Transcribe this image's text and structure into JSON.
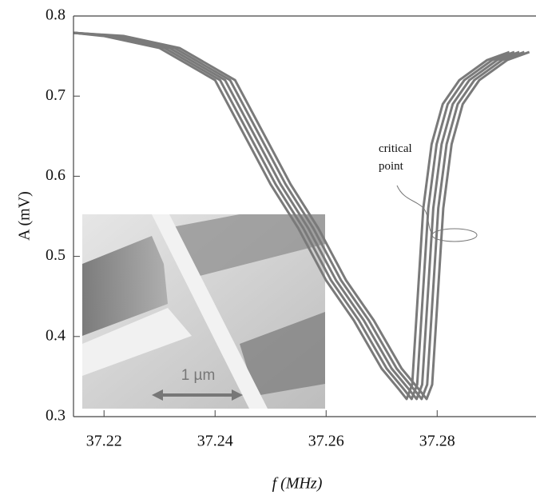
{
  "chart_data": {
    "type": "line",
    "x_label": "f (MHz)",
    "y_label": "A (mV)",
    "annotation": [
      "critical",
      "point"
    ],
    "inset_label": "1 µm",
    "xlim": [
      37.2145,
      37.2978
    ],
    "ylim": [
      0.3,
      0.8
    ],
    "xticks": [
      37.22,
      37.24,
      37.26,
      37.28
    ],
    "yticks": [
      0.3,
      0.4,
      0.5,
      0.6,
      0.7,
      0.8
    ],
    "color": "#7a7a7a",
    "series": [
      {
        "x": [
          37.2145,
          37.22,
          37.23,
          37.24,
          37.25,
          37.255,
          37.26,
          37.265,
          37.27,
          37.273,
          37.2745,
          37.2755,
          37.2765,
          37.2775,
          37.279,
          37.281,
          37.284,
          37.289,
          37.293
        ],
        "values": [
          0.779,
          0.775,
          0.76,
          0.72,
          0.59,
          0.535,
          0.47,
          0.42,
          0.36,
          0.335,
          0.322,
          0.34,
          0.45,
          0.56,
          0.64,
          0.69,
          0.72,
          0.745,
          0.755
        ]
      },
      {
        "x": [
          37.2145,
          37.2209,
          37.2309,
          37.2409,
          37.2509,
          37.2559,
          37.2609,
          37.2659,
          37.2709,
          37.2739,
          37.2754,
          37.2764,
          37.2774,
          37.2784,
          37.2799,
          37.2819,
          37.2849,
          37.2899,
          37.2939
        ],
        "values": [
          0.779,
          0.775,
          0.76,
          0.72,
          0.59,
          0.535,
          0.47,
          0.42,
          0.36,
          0.335,
          0.322,
          0.34,
          0.45,
          0.56,
          0.64,
          0.69,
          0.72,
          0.745,
          0.755
        ]
      },
      {
        "x": [
          37.2145,
          37.2218,
          37.2318,
          37.2418,
          37.2518,
          37.2568,
          37.2618,
          37.2668,
          37.2718,
          37.2748,
          37.2763,
          37.2773,
          37.2783,
          37.2793,
          37.2808,
          37.2828,
          37.2858,
          37.2908,
          37.2948
        ],
        "values": [
          0.779,
          0.775,
          0.76,
          0.72,
          0.59,
          0.535,
          0.47,
          0.42,
          0.36,
          0.335,
          0.322,
          0.34,
          0.45,
          0.56,
          0.64,
          0.69,
          0.72,
          0.745,
          0.755
        ]
      },
      {
        "x": [
          37.2145,
          37.2227,
          37.2327,
          37.2427,
          37.2527,
          37.2577,
          37.2627,
          37.2677,
          37.2727,
          37.2757,
          37.2772,
          37.2782,
          37.2792,
          37.2802,
          37.2817,
          37.2837,
          37.2867,
          37.2917,
          37.2957
        ],
        "values": [
          0.779,
          0.775,
          0.76,
          0.72,
          0.59,
          0.535,
          0.47,
          0.42,
          0.36,
          0.335,
          0.322,
          0.34,
          0.45,
          0.56,
          0.64,
          0.69,
          0.72,
          0.745,
          0.755
        ]
      },
      {
        "x": [
          37.2145,
          37.2236,
          37.2336,
          37.2436,
          37.2536,
          37.2586,
          37.2636,
          37.2686,
          37.2736,
          37.2766,
          37.2781,
          37.2791,
          37.2801,
          37.2811,
          37.2826,
          37.2846,
          37.2876,
          37.2926,
          37.2966
        ],
        "values": [
          0.779,
          0.775,
          0.76,
          0.72,
          0.59,
          0.535,
          0.47,
          0.42,
          0.36,
          0.335,
          0.322,
          0.34,
          0.45,
          0.56,
          0.64,
          0.69,
          0.72,
          0.745,
          0.755
        ]
      }
    ]
  }
}
